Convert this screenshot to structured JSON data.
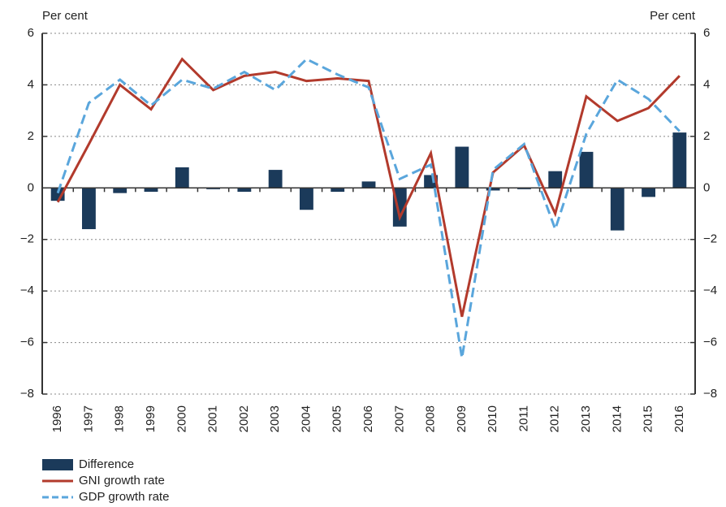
{
  "chart_data": {
    "type": "bar-line",
    "ylabel": "Per cent",
    "y2label": "Per cent",
    "categories": [
      "1996",
      "1997",
      "1998",
      "1999",
      "2000",
      "2001",
      "2002",
      "2003",
      "2004",
      "2005",
      "2006",
      "2007",
      "2008",
      "2009",
      "2010",
      "2011",
      "2012",
      "2013",
      "2014",
      "2015",
      "2016"
    ],
    "series": [
      {
        "name": "Difference",
        "type": "bar",
        "color": "#1b3a5a",
        "values": [
          -0.5,
          -1.6,
          -0.2,
          -0.15,
          0.8,
          -0.05,
          -0.15,
          0.7,
          -0.85,
          -0.15,
          0.25,
          -1.5,
          0.5,
          1.6,
          -0.1,
          -0.05,
          0.65,
          1.4,
          -1.65,
          -0.35,
          2.15
        ]
      },
      {
        "name": "GNI growth rate",
        "type": "line",
        "color": "#b23a2c",
        "dash": false,
        "values": [
          -0.55,
          1.7,
          4.0,
          3.05,
          5.0,
          3.8,
          4.35,
          4.5,
          4.15,
          4.25,
          4.15,
          -1.15,
          1.35,
          -5.0,
          0.6,
          1.65,
          -1.0,
          3.55,
          2.6,
          3.1,
          4.35
        ]
      },
      {
        "name": "GDP growth rate",
        "type": "line",
        "color": "#5aa6dc",
        "dash": true,
        "values": [
          -0.2,
          3.3,
          4.2,
          3.2,
          4.2,
          3.85,
          4.5,
          3.8,
          5.0,
          4.4,
          3.9,
          0.35,
          0.9,
          -6.6,
          0.7,
          1.7,
          -1.6,
          2.1,
          4.2,
          3.45,
          2.2
        ]
      }
    ],
    "ylim": [
      -8,
      6
    ],
    "yticks": [
      {
        "value": -8,
        "label": "−8"
      },
      {
        "value": -6,
        "label": "−6"
      },
      {
        "value": -4,
        "label": "−4"
      },
      {
        "value": -2,
        "label": "−2"
      },
      0,
      2,
      4,
      6
    ],
    "y2lim": [
      -8,
      6
    ],
    "y2ticks": [
      {
        "value": -8,
        "label": "−8"
      },
      {
        "value": -6,
        "label": "−6"
      },
      {
        "value": -4,
        "label": "−4"
      },
      {
        "value": -2,
        "label": "−2"
      },
      0,
      2,
      4,
      6
    ],
    "grid": true,
    "legend": "bottom-left"
  }
}
